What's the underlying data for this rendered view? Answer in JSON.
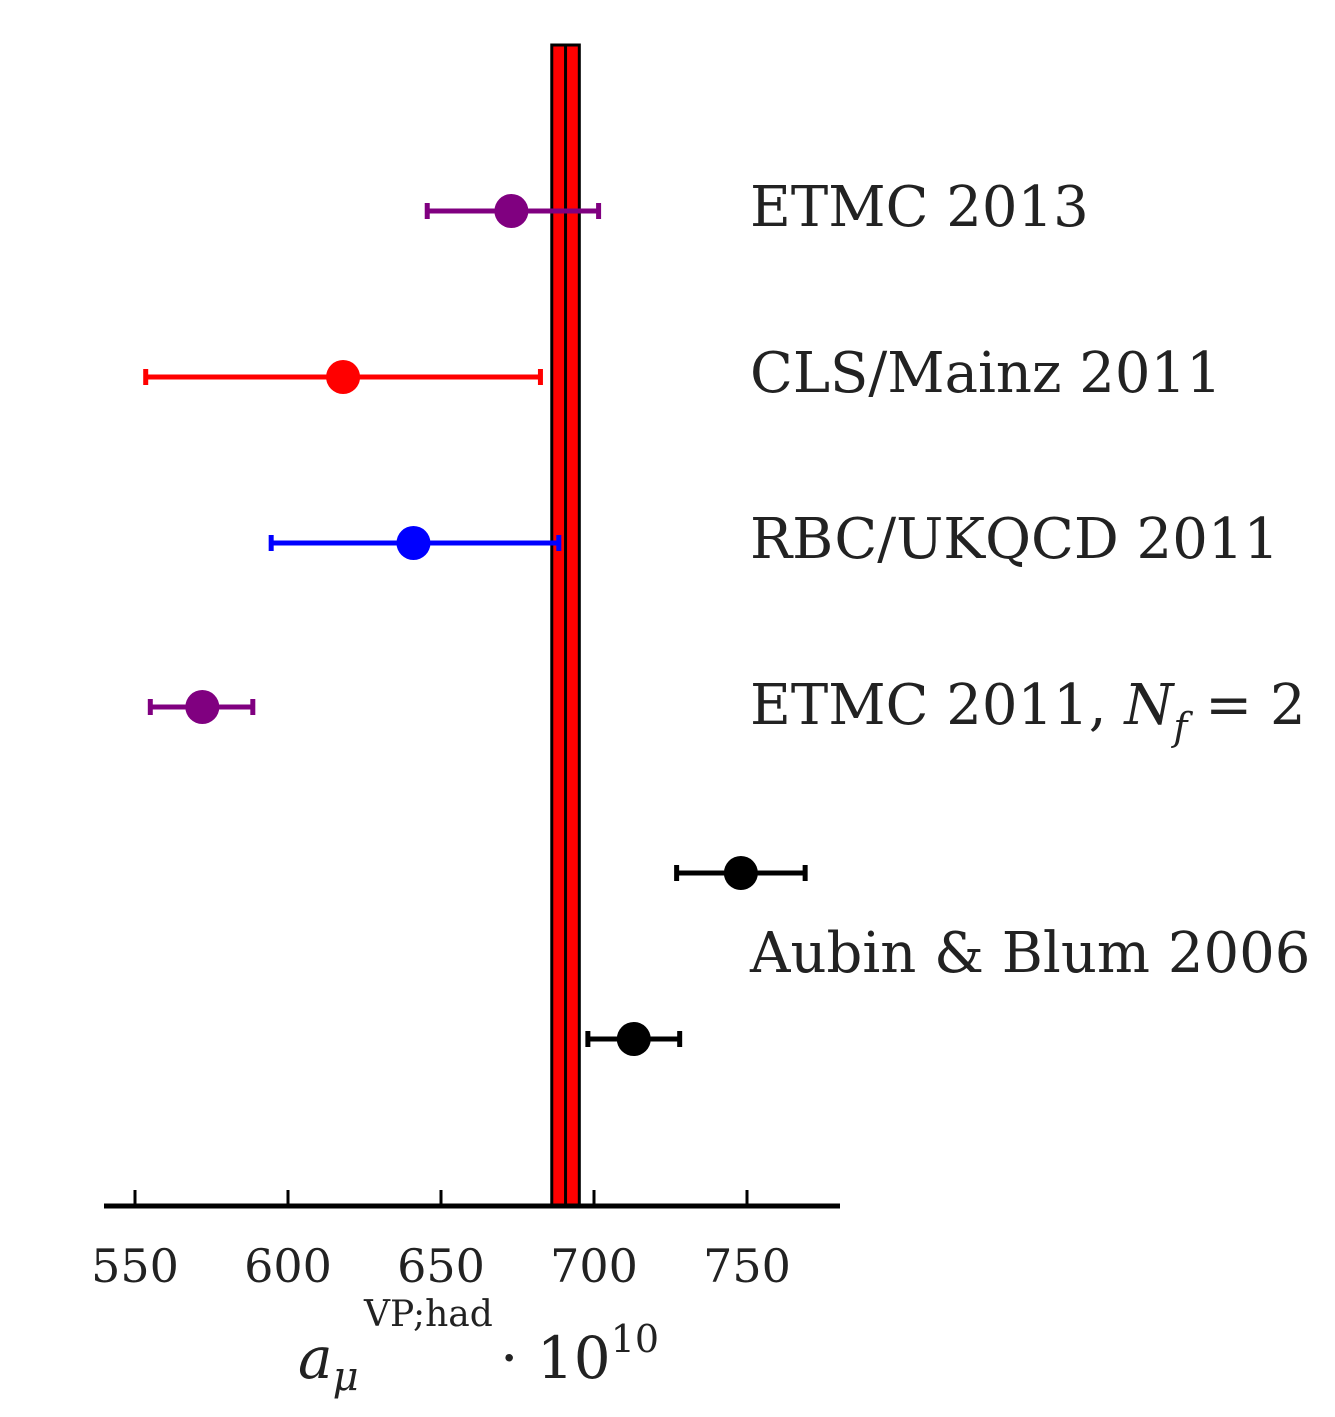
{
  "chart_data": {
    "type": "scatter",
    "xlabel": {
      "base": "a",
      "sub": "μ",
      "sup": "VP;had",
      "suffix": "· 10",
      "suffix_sup": "10"
    },
    "xlim": [
      545,
      780
    ],
    "xticks": [
      550,
      600,
      650,
      700,
      750
    ],
    "band": {
      "center": 690.7,
      "half_width": 4.5,
      "color": "#ff0000"
    },
    "points": [
      {
        "x": 673,
        "err_low": 27.5,
        "err_high": 28.5,
        "color": "#800080"
      },
      {
        "x": 618,
        "err_low": 64.5,
        "err_high": 64.5,
        "color": "#ff0000"
      },
      {
        "x": 641,
        "err_low": 46.5,
        "err_high": 47.5,
        "color": "#0000ff"
      },
      {
        "x": 572,
        "err_low": 17,
        "err_high": 16.5,
        "color": "#800080"
      },
      {
        "x": 748,
        "err_low": 21,
        "err_high": 21,
        "color": "#000000"
      },
      {
        "x": 713,
        "err_low": 15,
        "err_high": 15,
        "color": "#000000"
      }
    ],
    "labels": {
      "etmc2013": "ETMC 2013",
      "cls2011": "CLS/Mainz 2011",
      "rbc2011": "RBC/UKQCD 2011",
      "etmc2011": {
        "text": "ETMC 2011, ",
        "math_var": "N",
        "math_sub": "f",
        "math_rest": " = 2"
      },
      "aubin2006": "Aubin & Blum 2006"
    }
  }
}
